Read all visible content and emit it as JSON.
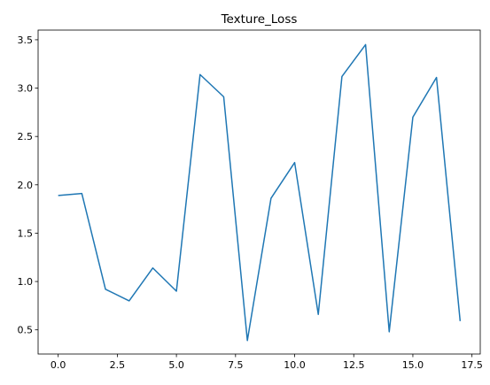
{
  "chart_data": {
    "type": "line",
    "title": "Texture_Loss",
    "xlabel": "",
    "ylabel": "",
    "xlim": [
      -0.85,
      17.85
    ],
    "ylim": [
      0.25,
      3.6
    ],
    "xticks": [
      0.0,
      2.5,
      5.0,
      7.5,
      10.0,
      12.5,
      15.0,
      17.5
    ],
    "xtick_labels": [
      "0.0",
      "2.5",
      "5.0",
      "7.5",
      "10.0",
      "12.5",
      "15.0",
      "17.5"
    ],
    "yticks": [
      0.5,
      1.0,
      1.5,
      2.0,
      2.5,
      3.0,
      3.5
    ],
    "ytick_labels": [
      "0.5",
      "1.0",
      "1.5",
      "2.0",
      "2.5",
      "3.0",
      "3.5"
    ],
    "grid": false,
    "series": [
      {
        "color": "#1f77b4",
        "x": [
          0,
          1,
          2,
          3,
          4,
          5,
          6,
          7,
          8,
          9,
          10,
          11,
          12,
          13,
          14,
          15,
          16,
          17
        ],
        "y": [
          1.89,
          1.91,
          0.92,
          0.8,
          1.14,
          0.9,
          3.14,
          2.91,
          0.39,
          1.86,
          2.23,
          0.66,
          3.12,
          3.45,
          0.48,
          2.7,
          3.11,
          0.59
        ]
      }
    ]
  }
}
